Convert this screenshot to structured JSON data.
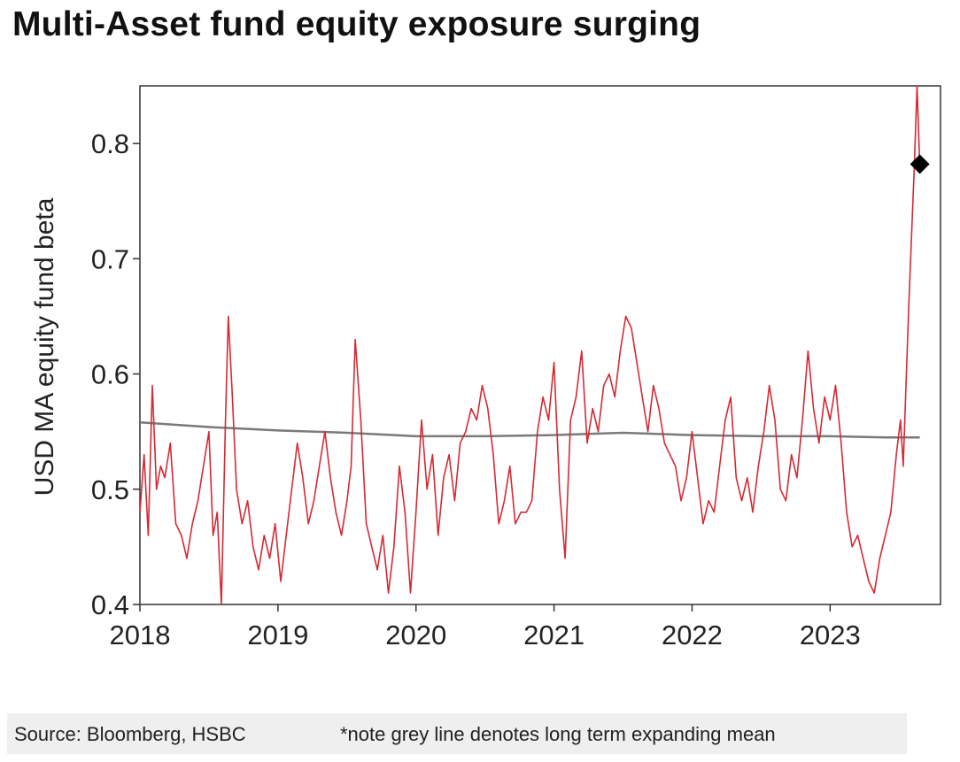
{
  "title": "Multi-Asset fund equity exposure surging",
  "source": "Source: Bloomberg, HSBC",
  "note": "*note grey line denotes long term expanding mean",
  "colors": {
    "series": "#d42a35",
    "mean": "#7a7a7a",
    "marker": "#000000",
    "axis": "#333333"
  },
  "chart_data": {
    "type": "line",
    "ylabel": "USD MA equity fund beta",
    "xlabel": "",
    "xlim": [
      2018,
      2023.8
    ],
    "ylim": [
      0.4,
      0.85
    ],
    "yticks": [
      0.4,
      0.5,
      0.6,
      0.7,
      0.8
    ],
    "ytick_labels": [
      "0.4",
      "0.5",
      "0.6",
      "0.7",
      "0.8"
    ],
    "xticks": [
      2018,
      2019,
      2020,
      2021,
      2022,
      2023
    ],
    "xtick_labels": [
      "2018",
      "2019",
      "2020",
      "2021",
      "2022",
      "2023"
    ],
    "grid": false,
    "series": [
      {
        "style": "red line",
        "x": [
          2018.0,
          2018.03,
          2018.06,
          2018.09,
          2018.12,
          2018.15,
          2018.18,
          2018.22,
          2018.26,
          2018.3,
          2018.34,
          2018.38,
          2018.42,
          2018.46,
          2018.5,
          2018.53,
          2018.56,
          2018.59,
          2018.62,
          2018.64,
          2018.67,
          2018.7,
          2018.74,
          2018.78,
          2018.82,
          2018.86,
          2018.9,
          2018.94,
          2018.98,
          2019.02,
          2019.06,
          2019.1,
          2019.14,
          2019.18,
          2019.22,
          2019.26,
          2019.3,
          2019.34,
          2019.38,
          2019.42,
          2019.46,
          2019.5,
          2019.53,
          2019.56,
          2019.6,
          2019.64,
          2019.68,
          2019.72,
          2019.76,
          2019.8,
          2019.84,
          2019.88,
          2019.92,
          2019.96,
          2020.0,
          2020.04,
          2020.08,
          2020.12,
          2020.16,
          2020.2,
          2020.24,
          2020.28,
          2020.32,
          2020.36,
          2020.4,
          2020.44,
          2020.48,
          2020.52,
          2020.56,
          2020.6,
          2020.64,
          2020.68,
          2020.72,
          2020.76,
          2020.8,
          2020.84,
          2020.88,
          2020.92,
          2020.96,
          2021.0,
          2021.04,
          2021.08,
          2021.12,
          2021.16,
          2021.2,
          2021.24,
          2021.28,
          2021.32,
          2021.36,
          2021.4,
          2021.44,
          2021.48,
          2021.52,
          2021.56,
          2021.6,
          2021.64,
          2021.68,
          2021.72,
          2021.76,
          2021.8,
          2021.84,
          2021.88,
          2021.92,
          2021.96,
          2022.0,
          2022.04,
          2022.08,
          2022.12,
          2022.16,
          2022.2,
          2022.24,
          2022.28,
          2022.32,
          2022.36,
          2022.4,
          2022.44,
          2022.48,
          2022.52,
          2022.56,
          2022.6,
          2022.64,
          2022.68,
          2022.72,
          2022.76,
          2022.8,
          2022.84,
          2022.88,
          2022.92,
          2022.96,
          2023.0,
          2023.04,
          2023.08,
          2023.12,
          2023.16,
          2023.2,
          2023.24,
          2023.28,
          2023.32,
          2023.36,
          2023.4,
          2023.44,
          2023.48,
          2023.51,
          2023.53,
          2023.55,
          2023.57,
          2023.59,
          2023.61,
          2023.63,
          2023.65
        ],
        "y": [
          0.48,
          0.53,
          0.46,
          0.59,
          0.5,
          0.52,
          0.51,
          0.54,
          0.47,
          0.46,
          0.44,
          0.47,
          0.49,
          0.52,
          0.55,
          0.46,
          0.48,
          0.4,
          0.56,
          0.65,
          0.58,
          0.5,
          0.47,
          0.49,
          0.45,
          0.43,
          0.46,
          0.44,
          0.47,
          0.42,
          0.46,
          0.5,
          0.54,
          0.51,
          0.47,
          0.49,
          0.52,
          0.55,
          0.51,
          0.48,
          0.46,
          0.49,
          0.52,
          0.63,
          0.56,
          0.47,
          0.45,
          0.43,
          0.46,
          0.41,
          0.45,
          0.52,
          0.48,
          0.41,
          0.48,
          0.56,
          0.5,
          0.53,
          0.46,
          0.51,
          0.53,
          0.49,
          0.54,
          0.55,
          0.57,
          0.56,
          0.59,
          0.57,
          0.53,
          0.47,
          0.49,
          0.52,
          0.47,
          0.48,
          0.48,
          0.49,
          0.55,
          0.58,
          0.56,
          0.61,
          0.5,
          0.44,
          0.56,
          0.58,
          0.62,
          0.54,
          0.57,
          0.55,
          0.59,
          0.6,
          0.58,
          0.62,
          0.65,
          0.64,
          0.61,
          0.58,
          0.55,
          0.59,
          0.57,
          0.54,
          0.53,
          0.52,
          0.49,
          0.51,
          0.55,
          0.51,
          0.47,
          0.49,
          0.48,
          0.52,
          0.56,
          0.58,
          0.51,
          0.49,
          0.51,
          0.48,
          0.52,
          0.55,
          0.59,
          0.56,
          0.5,
          0.49,
          0.53,
          0.51,
          0.56,
          0.62,
          0.57,
          0.54,
          0.58,
          0.56,
          0.59,
          0.54,
          0.48,
          0.45,
          0.46,
          0.44,
          0.42,
          0.41,
          0.44,
          0.46,
          0.48,
          0.53,
          0.56,
          0.52,
          0.59,
          0.66,
          0.72,
          0.78,
          0.85,
          0.78
        ]
      },
      {
        "style": "grey line",
        "x": [
          2018.0,
          2018.5,
          2019.0,
          2019.5,
          2020.0,
          2020.5,
          2021.0,
          2021.5,
          2022.0,
          2022.5,
          2023.0,
          2023.4,
          2023.65
        ],
        "y": [
          0.558,
          0.554,
          0.551,
          0.549,
          0.546,
          0.546,
          0.547,
          0.549,
          0.547,
          0.546,
          0.546,
          0.545,
          0.545
        ]
      }
    ],
    "marker": {
      "shape": "diamond",
      "x": 2023.65,
      "y": 0.782
    }
  }
}
